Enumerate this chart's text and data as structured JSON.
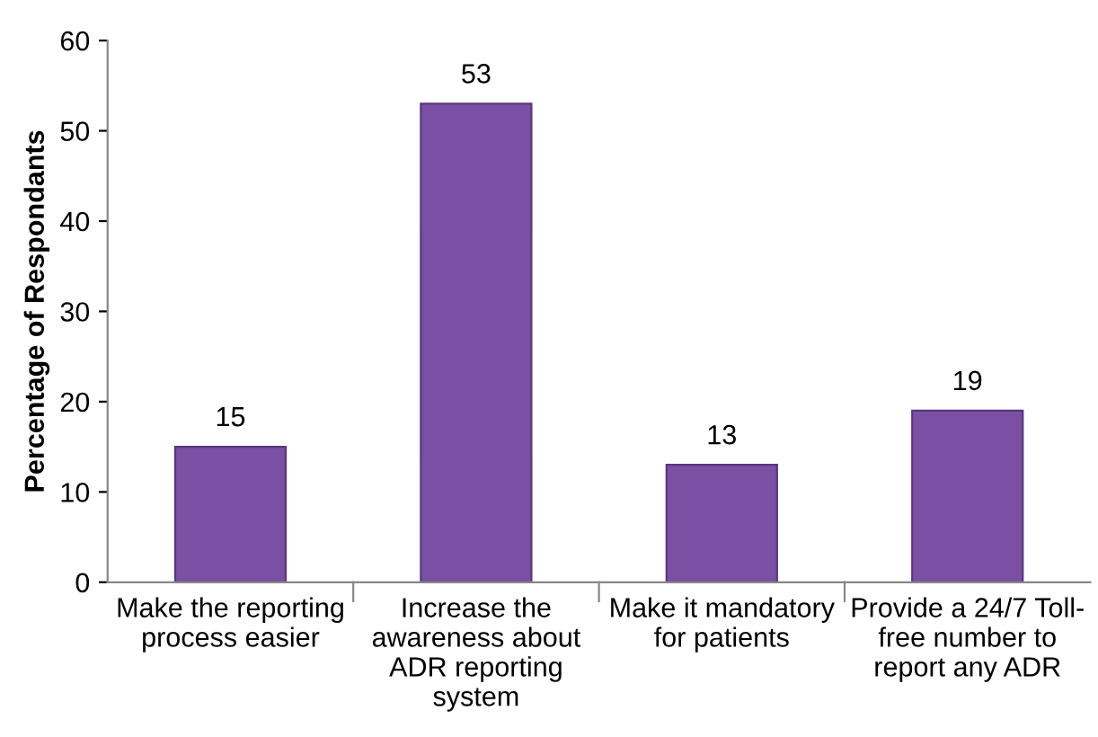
{
  "chart_data": {
    "type": "bar",
    "ylabel": "Percentage of Respondants",
    "categories": [
      "Make the reporting\nprocess easier",
      "Increase the\nawareness about\nADR reporting\nsystem",
      "Make it mandatory\nfor patients",
      "Provide a 24/7 Toll-\nfree number to\nreport any ADR"
    ],
    "values": [
      15,
      53,
      13,
      19
    ],
    "color": "#7b4fa3",
    "data_labels": true,
    "ylim": [
      0,
      60
    ],
    "yticks": [
      0,
      10,
      20,
      30,
      40,
      50,
      60
    ],
    "grid": false,
    "legend": false
  }
}
